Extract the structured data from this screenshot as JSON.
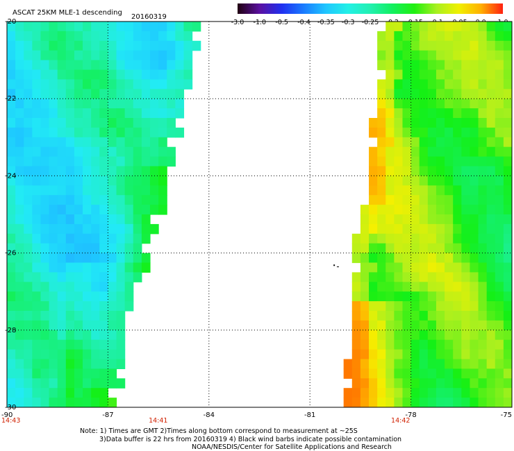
{
  "header": {
    "title": "ASCAT 25KM MLE-1 descending",
    "date": "20160319"
  },
  "colorbar": {
    "labels": [
      "-3.0",
      "-1.0",
      "-0.5",
      "-0.4",
      "-0.35",
      "-0.3",
      "-0.25",
      "-0.2",
      "-0.15",
      "-0.1",
      "-0.05",
      "0.0",
      "1.0"
    ],
    "colors": [
      "#200010",
      "#5a10a0",
      "#2030f0",
      "#1a7cff",
      "#1fc6ff",
      "#22f0e6",
      "#22f0b0",
      "#12f060",
      "#20f010",
      "#a8f020",
      "#f0f000",
      "#ffb000",
      "#ff2010"
    ]
  },
  "notes": {
    "line1": "Note: 1) Times are GMT 2)Times along bottom correspond to measurement at ~25S",
    "line2": "3)Data buffer is 22 hrs from 20160319 4) Black wind barbs indicate possible contamination",
    "line3": "NOAA/NESDIS/Center for Satellite Applications and Research"
  },
  "chart_data": {
    "type": "heatmap",
    "title": "ASCAT 25KM MLE-1 descending",
    "date": "20160319",
    "x_axis": {
      "range": [
        -90,
        -75
      ],
      "ticks": [
        "-90",
        "-87",
        "-84",
        "-81",
        "-78",
        "-75"
      ]
    },
    "y_axis": {
      "range": [
        -30,
        -20
      ],
      "ticks": [
        "-20",
        "-22",
        "-24",
        "-26",
        "-28",
        "-30"
      ]
    },
    "grid": "dotted",
    "time_labels": [
      {
        "lon": -90,
        "text": "14:43"
      },
      {
        "lon": -85.5,
        "text": "14:41"
      },
      {
        "lon": -78.3,
        "text": "14:42"
      }
    ],
    "time_label_color": "#d02000",
    "swaths": [
      {
        "name": "west",
        "lon_start": -90,
        "edge_at_lat_-20": -84.1,
        "edge_at_lat_-30": -86.8,
        "dominant_range": "-0.3 to -0.15"
      },
      {
        "name": "east",
        "lon_end": -75,
        "edge_at_lat_-20": -79.0,
        "edge_at_lat_-30": -80.2,
        "dominant_range": "-0.15 to 0.0"
      }
    ],
    "colorscale": [
      "-3.0",
      "-1.0",
      "-0.5",
      "-0.4",
      "-0.35",
      "-0.3",
      "-0.25",
      "-0.2",
      "-0.15",
      "-0.1",
      "-0.05",
      "0.0",
      "1.0"
    ]
  }
}
